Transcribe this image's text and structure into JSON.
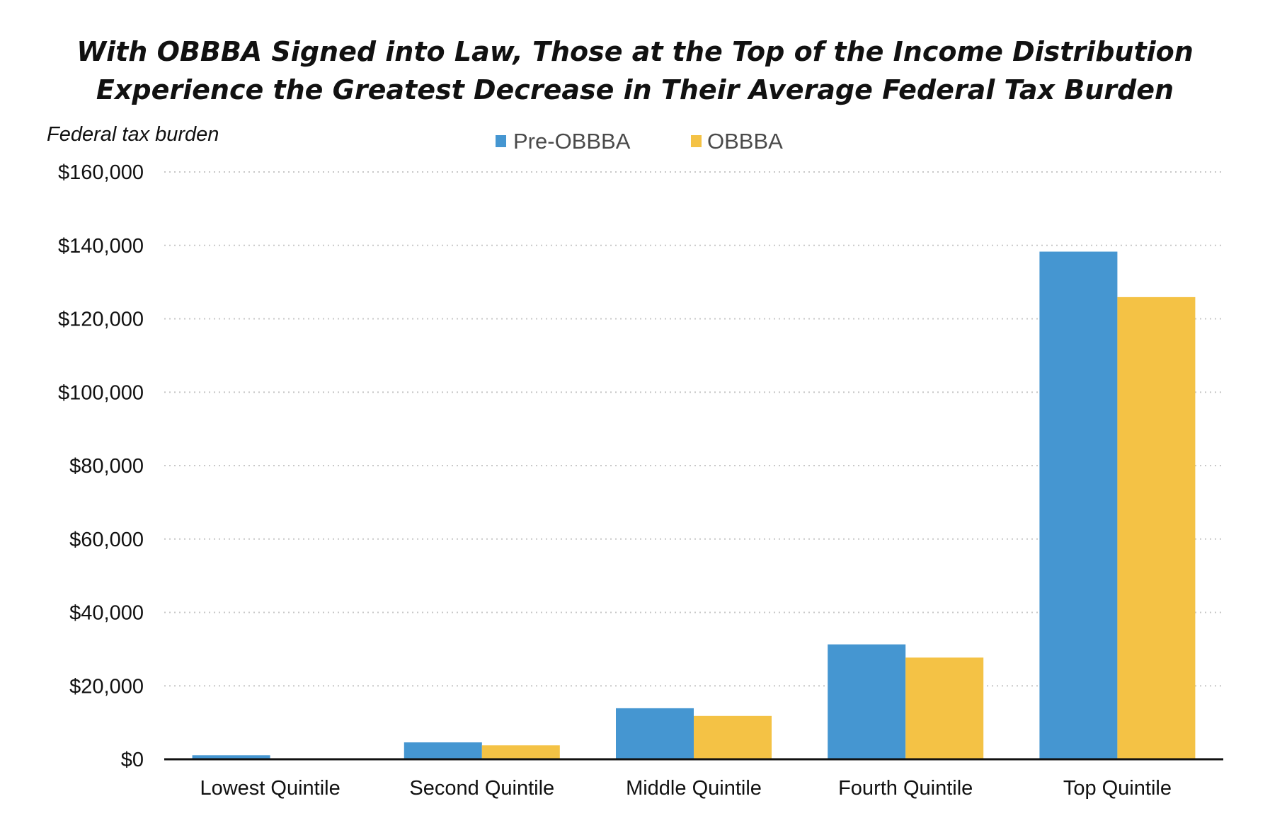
{
  "colors": {
    "pre_obbba": "#4596d1",
    "obbba": "#f4c245"
  },
  "chart_data": {
    "type": "bar",
    "title": [
      "With OBBBA Signed into Law, Those at the Top of the Income Distribution",
      "Experience the Greatest Decrease in Their Average Federal Tax Burden"
    ],
    "ylabel": "Federal tax burden",
    "xlabel": "",
    "categories": [
      "Lowest Quintile",
      "Second Quintile",
      "Middle Quintile",
      "Fourth Quintile",
      "Top Quintile"
    ],
    "series": [
      {
        "name": "Pre-OBBBA",
        "values": [
          1100,
          4600,
          13900,
          31300,
          138300
        ]
      },
      {
        "name": "OBBBA",
        "values": [
          0,
          3800,
          11800,
          27700,
          125900
        ]
      }
    ],
    "ylim": [
      0,
      160000
    ],
    "yticks": [
      0,
      20000,
      40000,
      60000,
      80000,
      100000,
      120000,
      140000,
      160000
    ],
    "ytick_labels": [
      "$0",
      "$20,000",
      "$40,000",
      "$60,000",
      "$80,000",
      "$100,000",
      "$120,000",
      "$140,000",
      "$160,000"
    ],
    "grid": true,
    "legend_position": "top-center"
  }
}
